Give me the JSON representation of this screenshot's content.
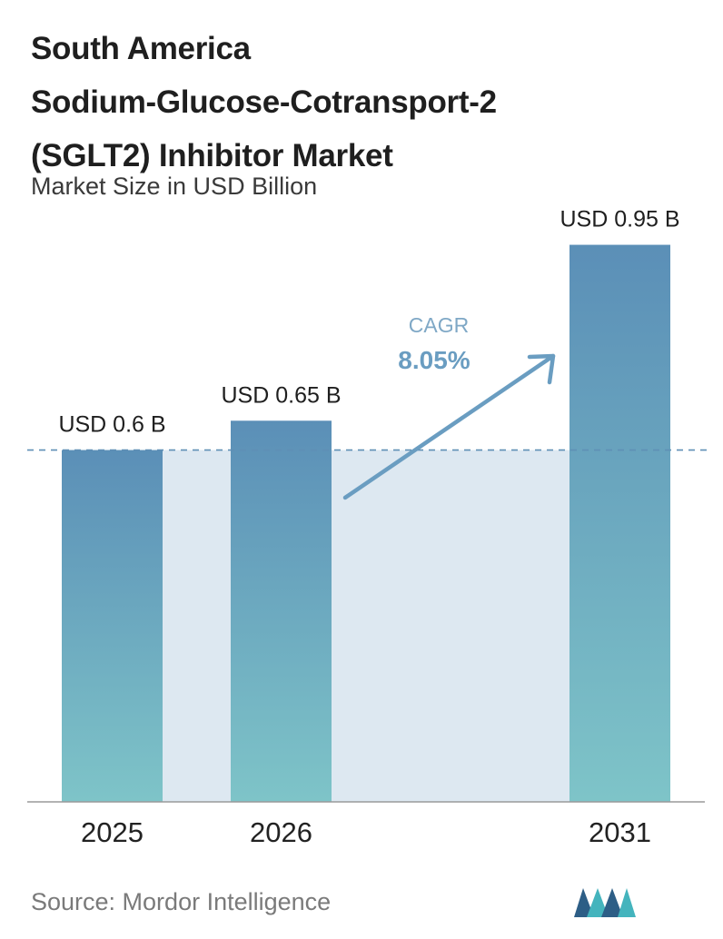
{
  "header": {
    "title_lines": [
      "South America",
      "Sodium-Glucose-Cotransport-2",
      "(SGLT2) Inhibitor Market"
    ],
    "subtitle": "Market Size in USD Billion"
  },
  "chart_data": {
    "type": "bar",
    "categories": [
      "2025",
      "2026",
      "2031"
    ],
    "values": [
      0.6,
      0.65,
      0.95
    ],
    "value_labels": [
      "USD 0.6 B",
      "USD 0.65 B",
      "USD 0.95 B"
    ],
    "title": "South America Sodium-Glucose-Cotransport-2 (SGLT2) Inhibitor Market",
    "subtitle": "Market Size in USD Billion",
    "ylim": [
      0,
      1.05
    ],
    "grid": false,
    "reference_line_value": 0.6,
    "annotation": {
      "label": "CAGR",
      "value": "8.05%"
    }
  },
  "footer": {
    "source": "Source: Mordor Intelligence"
  },
  "colors": {
    "bar_top": "#5b8fb7",
    "bar_bottom": "#7ec4c8",
    "band_fill": "#dde8f1",
    "arrow": "#6a9dc1",
    "cagr_label": "#7fa8c6",
    "cagr_value": "#6a9dc1",
    "baseline": "#9a9a9a",
    "logo_dark": "#2d5e86",
    "logo_light": "#44b4bd"
  }
}
